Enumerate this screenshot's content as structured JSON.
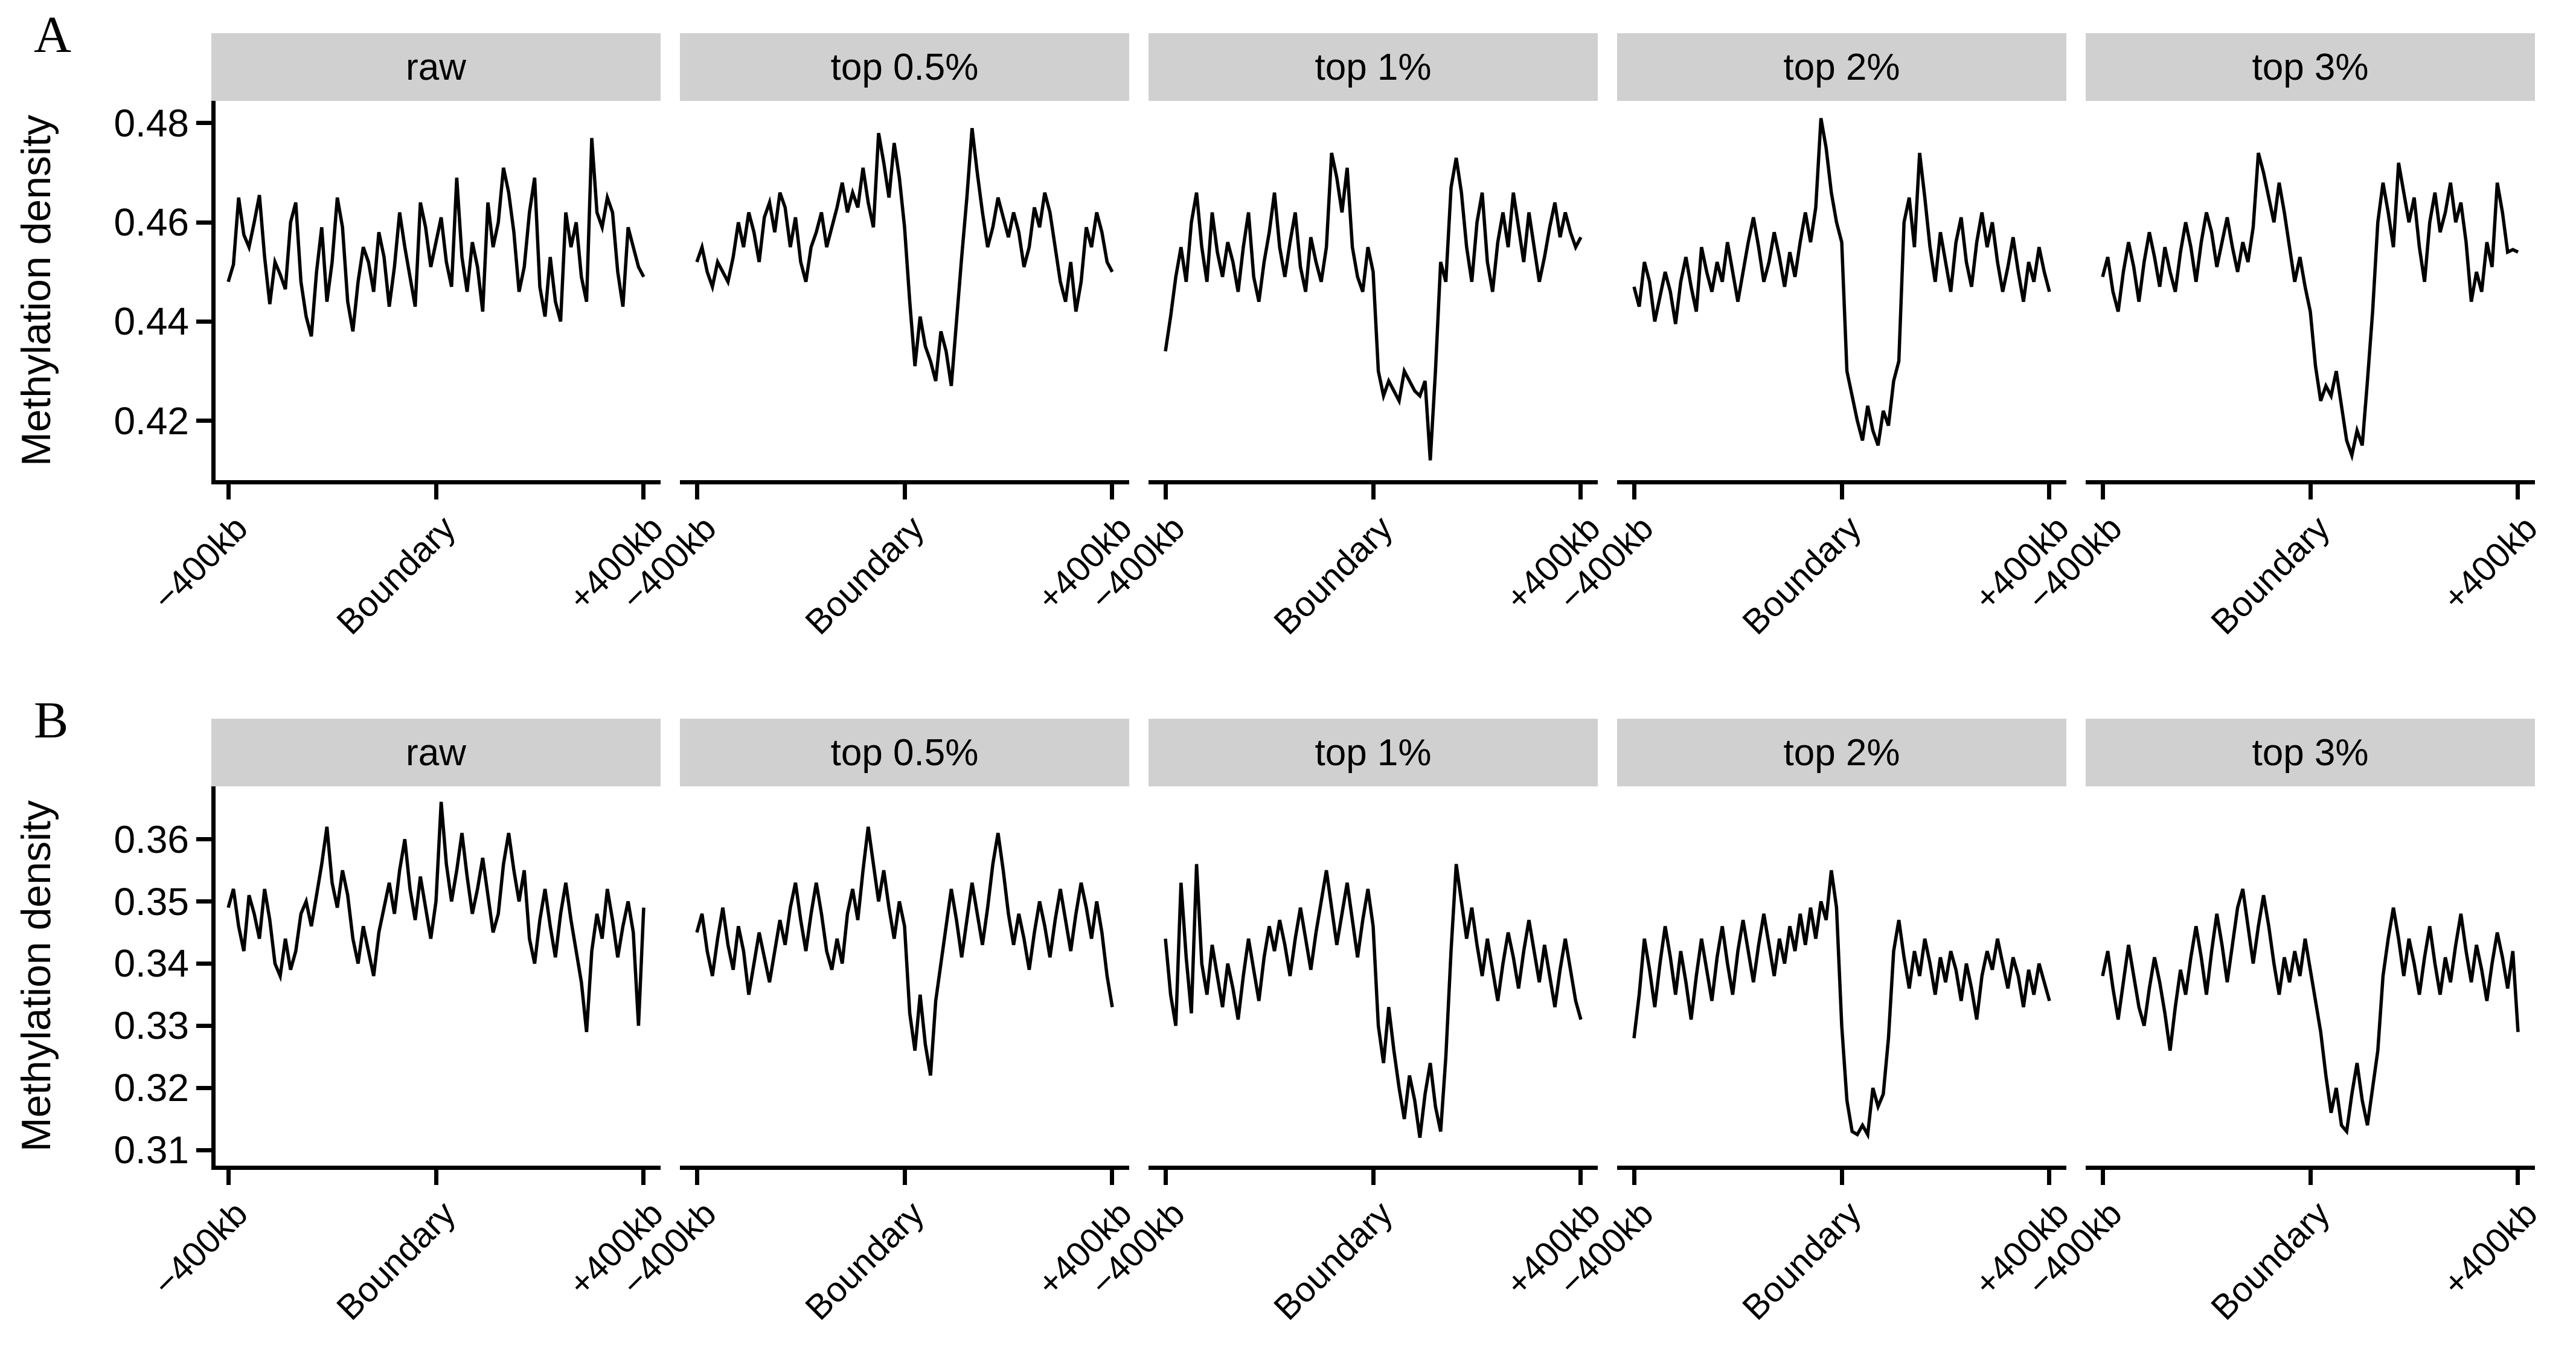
{
  "colors": {
    "line": "#000000",
    "strip_bg": "#d0d0d0",
    "axis": "#000000",
    "text": "#000000"
  },
  "chart_data": [
    {
      "panel_label": "A",
      "type": "line",
      "ylabel": "Methylation density",
      "xlabel": "",
      "legend": "none",
      "grid": "off",
      "x_tick_labels": [
        "−400kb",
        "Boundary",
        "+400kb"
      ],
      "y_ticks": [
        0.48,
        0.46,
        0.44,
        0.42
      ],
      "ylim": [
        0.408,
        0.4845
      ],
      "facets": [
        {
          "title": "raw",
          "values": [
            0.448,
            0.4515,
            0.465,
            0.4575,
            0.455,
            0.46,
            0.4655,
            0.453,
            0.4435,
            0.452,
            0.4495,
            0.4465,
            0.46,
            0.464,
            0.448,
            0.441,
            0.437,
            0.45,
            0.459,
            0.444,
            0.452,
            0.465,
            0.459,
            0.444,
            0.438,
            0.448,
            0.455,
            0.452,
            0.446,
            0.458,
            0.453,
            0.443,
            0.451,
            0.462,
            0.455,
            0.449,
            0.443,
            0.464,
            0.459,
            0.451,
            0.456,
            0.461,
            0.452,
            0.447,
            0.469,
            0.453,
            0.446,
            0.456,
            0.451,
            0.442,
            0.464,
            0.455,
            0.46,
            0.471,
            0.466,
            0.458,
            0.446,
            0.451,
            0.462,
            0.469,
            0.447,
            0.441,
            0.453,
            0.444,
            0.44,
            0.462,
            0.455,
            0.46,
            0.449,
            0.444,
            0.477,
            0.462,
            0.459,
            0.465,
            0.462,
            0.45,
            0.443,
            0.459,
            0.455,
            0.451,
            0.449
          ]
        },
        {
          "title": "top 0.5%",
          "values": [
            0.452,
            0.455,
            0.45,
            0.447,
            0.452,
            0.45,
            0.448,
            0.453,
            0.46,
            0.455,
            0.462,
            0.458,
            0.452,
            0.461,
            0.464,
            0.458,
            0.466,
            0.463,
            0.455,
            0.461,
            0.452,
            0.448,
            0.455,
            0.458,
            0.462,
            0.455,
            0.459,
            0.463,
            0.468,
            0.462,
            0.466,
            0.463,
            0.471,
            0.464,
            0.459,
            0.478,
            0.472,
            0.465,
            0.476,
            0.469,
            0.459,
            0.444,
            0.431,
            0.441,
            0.435,
            0.432,
            0.428,
            0.438,
            0.434,
            0.427,
            0.44,
            0.453,
            0.465,
            0.479,
            0.47,
            0.462,
            0.455,
            0.459,
            0.465,
            0.461,
            0.457,
            0.462,
            0.458,
            0.451,
            0.455,
            0.463,
            0.459,
            0.466,
            0.462,
            0.455,
            0.448,
            0.444,
            0.452,
            0.442,
            0.448,
            0.459,
            0.455,
            0.462,
            0.458,
            0.452,
            0.45
          ]
        },
        {
          "title": "top 1%",
          "values": [
            0.434,
            0.441,
            0.449,
            0.455,
            0.448,
            0.46,
            0.466,
            0.455,
            0.448,
            0.462,
            0.454,
            0.449,
            0.456,
            0.452,
            0.446,
            0.455,
            0.462,
            0.449,
            0.444,
            0.452,
            0.458,
            0.466,
            0.455,
            0.449,
            0.456,
            0.462,
            0.451,
            0.446,
            0.457,
            0.452,
            0.448,
            0.455,
            0.474,
            0.469,
            0.462,
            0.471,
            0.455,
            0.449,
            0.446,
            0.455,
            0.45,
            0.43,
            0.425,
            0.428,
            0.426,
            0.424,
            0.43,
            0.428,
            0.426,
            0.425,
            0.428,
            0.412,
            0.43,
            0.452,
            0.448,
            0.467,
            0.473,
            0.466,
            0.455,
            0.448,
            0.46,
            0.466,
            0.452,
            0.446,
            0.456,
            0.462,
            0.455,
            0.466,
            0.459,
            0.452,
            0.462,
            0.455,
            0.448,
            0.453,
            0.459,
            0.464,
            0.457,
            0.462,
            0.458,
            0.455,
            0.457
          ]
        },
        {
          "title": "top 2%",
          "values": [
            0.447,
            0.443,
            0.452,
            0.448,
            0.44,
            0.445,
            0.45,
            0.446,
            0.4395,
            0.448,
            0.453,
            0.447,
            0.442,
            0.455,
            0.45,
            0.446,
            0.452,
            0.448,
            0.456,
            0.45,
            0.444,
            0.45,
            0.456,
            0.461,
            0.455,
            0.448,
            0.452,
            0.458,
            0.453,
            0.447,
            0.454,
            0.449,
            0.456,
            0.462,
            0.456,
            0.463,
            0.481,
            0.475,
            0.466,
            0.46,
            0.456,
            0.43,
            0.425,
            0.42,
            0.416,
            0.423,
            0.418,
            0.415,
            0.422,
            0.419,
            0.428,
            0.432,
            0.46,
            0.465,
            0.455,
            0.474,
            0.465,
            0.455,
            0.448,
            0.458,
            0.452,
            0.446,
            0.456,
            0.461,
            0.452,
            0.447,
            0.456,
            0.462,
            0.455,
            0.46,
            0.452,
            0.446,
            0.451,
            0.457,
            0.45,
            0.444,
            0.452,
            0.448,
            0.455,
            0.45,
            0.446
          ]
        },
        {
          "title": "top 3%",
          "values": [
            0.449,
            0.453,
            0.446,
            0.442,
            0.45,
            0.456,
            0.451,
            0.444,
            0.452,
            0.458,
            0.453,
            0.447,
            0.455,
            0.45,
            0.446,
            0.454,
            0.46,
            0.455,
            0.448,
            0.456,
            0.462,
            0.458,
            0.451,
            0.456,
            0.461,
            0.455,
            0.45,
            0.456,
            0.452,
            0.459,
            0.474,
            0.47,
            0.465,
            0.46,
            0.468,
            0.462,
            0.455,
            0.448,
            0.453,
            0.447,
            0.442,
            0.431,
            0.424,
            0.427,
            0.425,
            0.43,
            0.423,
            0.416,
            0.413,
            0.418,
            0.415,
            0.428,
            0.442,
            0.46,
            0.468,
            0.462,
            0.455,
            0.472,
            0.466,
            0.46,
            0.465,
            0.455,
            0.448,
            0.46,
            0.466,
            0.458,
            0.462,
            0.468,
            0.46,
            0.464,
            0.456,
            0.444,
            0.45,
            0.446,
            0.456,
            0.451,
            0.468,
            0.462,
            0.454,
            0.4545,
            0.454
          ]
        }
      ]
    },
    {
      "panel_label": "B",
      "type": "line",
      "ylabel": "Methylation density",
      "xlabel": "",
      "legend": "none",
      "grid": "off",
      "x_tick_labels": [
        "−400kb",
        "Boundary",
        "+400kb"
      ],
      "y_ticks": [
        0.36,
        0.35,
        0.34,
        0.33,
        0.32,
        0.31
      ],
      "ylim": [
        0.3075,
        0.3685
      ],
      "facets": [
        {
          "title": "raw",
          "values": [
            0.349,
            0.352,
            0.346,
            0.342,
            0.351,
            0.348,
            0.344,
            0.352,
            0.347,
            0.34,
            0.338,
            0.344,
            0.339,
            0.342,
            0.348,
            0.35,
            0.346,
            0.351,
            0.356,
            0.362,
            0.353,
            0.349,
            0.355,
            0.351,
            0.344,
            0.34,
            0.346,
            0.342,
            0.338,
            0.345,
            0.349,
            0.353,
            0.348,
            0.355,
            0.36,
            0.352,
            0.347,
            0.354,
            0.349,
            0.344,
            0.35,
            0.366,
            0.356,
            0.35,
            0.355,
            0.361,
            0.354,
            0.348,
            0.352,
            0.357,
            0.351,
            0.345,
            0.348,
            0.356,
            0.361,
            0.355,
            0.35,
            0.355,
            0.344,
            0.34,
            0.347,
            0.352,
            0.346,
            0.341,
            0.348,
            0.353,
            0.347,
            0.342,
            0.337,
            0.329,
            0.342,
            0.348,
            0.344,
            0.352,
            0.347,
            0.341,
            0.346,
            0.35,
            0.345,
            0.33,
            0.349
          ]
        },
        {
          "title": "top 0.5%",
          "values": [
            0.345,
            0.348,
            0.342,
            0.338,
            0.344,
            0.349,
            0.343,
            0.339,
            0.346,
            0.342,
            0.335,
            0.34,
            0.345,
            0.341,
            0.337,
            0.342,
            0.347,
            0.343,
            0.349,
            0.353,
            0.347,
            0.342,
            0.348,
            0.353,
            0.348,
            0.342,
            0.339,
            0.344,
            0.34,
            0.348,
            0.352,
            0.347,
            0.355,
            0.362,
            0.356,
            0.35,
            0.355,
            0.349,
            0.344,
            0.35,
            0.346,
            0.332,
            0.326,
            0.335,
            0.327,
            0.322,
            0.334,
            0.34,
            0.346,
            0.352,
            0.347,
            0.341,
            0.347,
            0.353,
            0.348,
            0.343,
            0.349,
            0.356,
            0.361,
            0.355,
            0.348,
            0.343,
            0.348,
            0.344,
            0.339,
            0.345,
            0.35,
            0.346,
            0.341,
            0.347,
            0.352,
            0.347,
            0.342,
            0.348,
            0.353,
            0.349,
            0.344,
            0.35,
            0.345,
            0.338,
            0.333
          ]
        },
        {
          "title": "top 1%",
          "values": [
            0.344,
            0.335,
            0.33,
            0.353,
            0.341,
            0.332,
            0.356,
            0.34,
            0.335,
            0.343,
            0.338,
            0.333,
            0.34,
            0.336,
            0.331,
            0.338,
            0.344,
            0.339,
            0.334,
            0.341,
            0.346,
            0.342,
            0.347,
            0.343,
            0.338,
            0.344,
            0.349,
            0.344,
            0.339,
            0.345,
            0.35,
            0.355,
            0.349,
            0.343,
            0.348,
            0.353,
            0.347,
            0.341,
            0.347,
            0.352,
            0.346,
            0.33,
            0.324,
            0.333,
            0.326,
            0.32,
            0.315,
            0.322,
            0.318,
            0.312,
            0.319,
            0.324,
            0.317,
            0.313,
            0.325,
            0.342,
            0.356,
            0.35,
            0.344,
            0.349,
            0.343,
            0.338,
            0.344,
            0.339,
            0.334,
            0.34,
            0.345,
            0.341,
            0.336,
            0.342,
            0.347,
            0.342,
            0.337,
            0.343,
            0.338,
            0.333,
            0.339,
            0.344,
            0.339,
            0.334,
            0.331
          ]
        },
        {
          "title": "top 2%",
          "values": [
            0.328,
            0.335,
            0.344,
            0.339,
            0.333,
            0.34,
            0.346,
            0.341,
            0.335,
            0.342,
            0.337,
            0.331,
            0.338,
            0.344,
            0.339,
            0.334,
            0.341,
            0.346,
            0.34,
            0.335,
            0.342,
            0.347,
            0.342,
            0.337,
            0.343,
            0.348,
            0.343,
            0.338,
            0.344,
            0.34,
            0.346,
            0.342,
            0.348,
            0.343,
            0.349,
            0.344,
            0.35,
            0.347,
            0.355,
            0.349,
            0.33,
            0.318,
            0.313,
            0.3125,
            0.314,
            0.3125,
            0.32,
            0.317,
            0.319,
            0.328,
            0.342,
            0.347,
            0.341,
            0.336,
            0.342,
            0.338,
            0.344,
            0.34,
            0.335,
            0.341,
            0.337,
            0.342,
            0.339,
            0.334,
            0.34,
            0.336,
            0.331,
            0.338,
            0.342,
            0.339,
            0.344,
            0.34,
            0.336,
            0.341,
            0.338,
            0.333,
            0.339,
            0.335,
            0.34,
            0.337,
            0.334
          ]
        },
        {
          "title": "top 3%",
          "values": [
            0.338,
            0.342,
            0.336,
            0.331,
            0.337,
            0.343,
            0.338,
            0.333,
            0.33,
            0.336,
            0.341,
            0.337,
            0.332,
            0.326,
            0.333,
            0.339,
            0.335,
            0.341,
            0.346,
            0.341,
            0.335,
            0.342,
            0.348,
            0.343,
            0.337,
            0.343,
            0.349,
            0.352,
            0.346,
            0.34,
            0.346,
            0.351,
            0.346,
            0.34,
            0.335,
            0.341,
            0.337,
            0.342,
            0.338,
            0.344,
            0.339,
            0.334,
            0.329,
            0.322,
            0.316,
            0.32,
            0.314,
            0.313,
            0.319,
            0.324,
            0.318,
            0.314,
            0.32,
            0.326,
            0.338,
            0.344,
            0.349,
            0.344,
            0.338,
            0.344,
            0.34,
            0.335,
            0.341,
            0.346,
            0.34,
            0.335,
            0.341,
            0.337,
            0.343,
            0.348,
            0.342,
            0.337,
            0.343,
            0.339,
            0.334,
            0.34,
            0.345,
            0.341,
            0.336,
            0.342,
            0.329
          ]
        }
      ]
    }
  ]
}
